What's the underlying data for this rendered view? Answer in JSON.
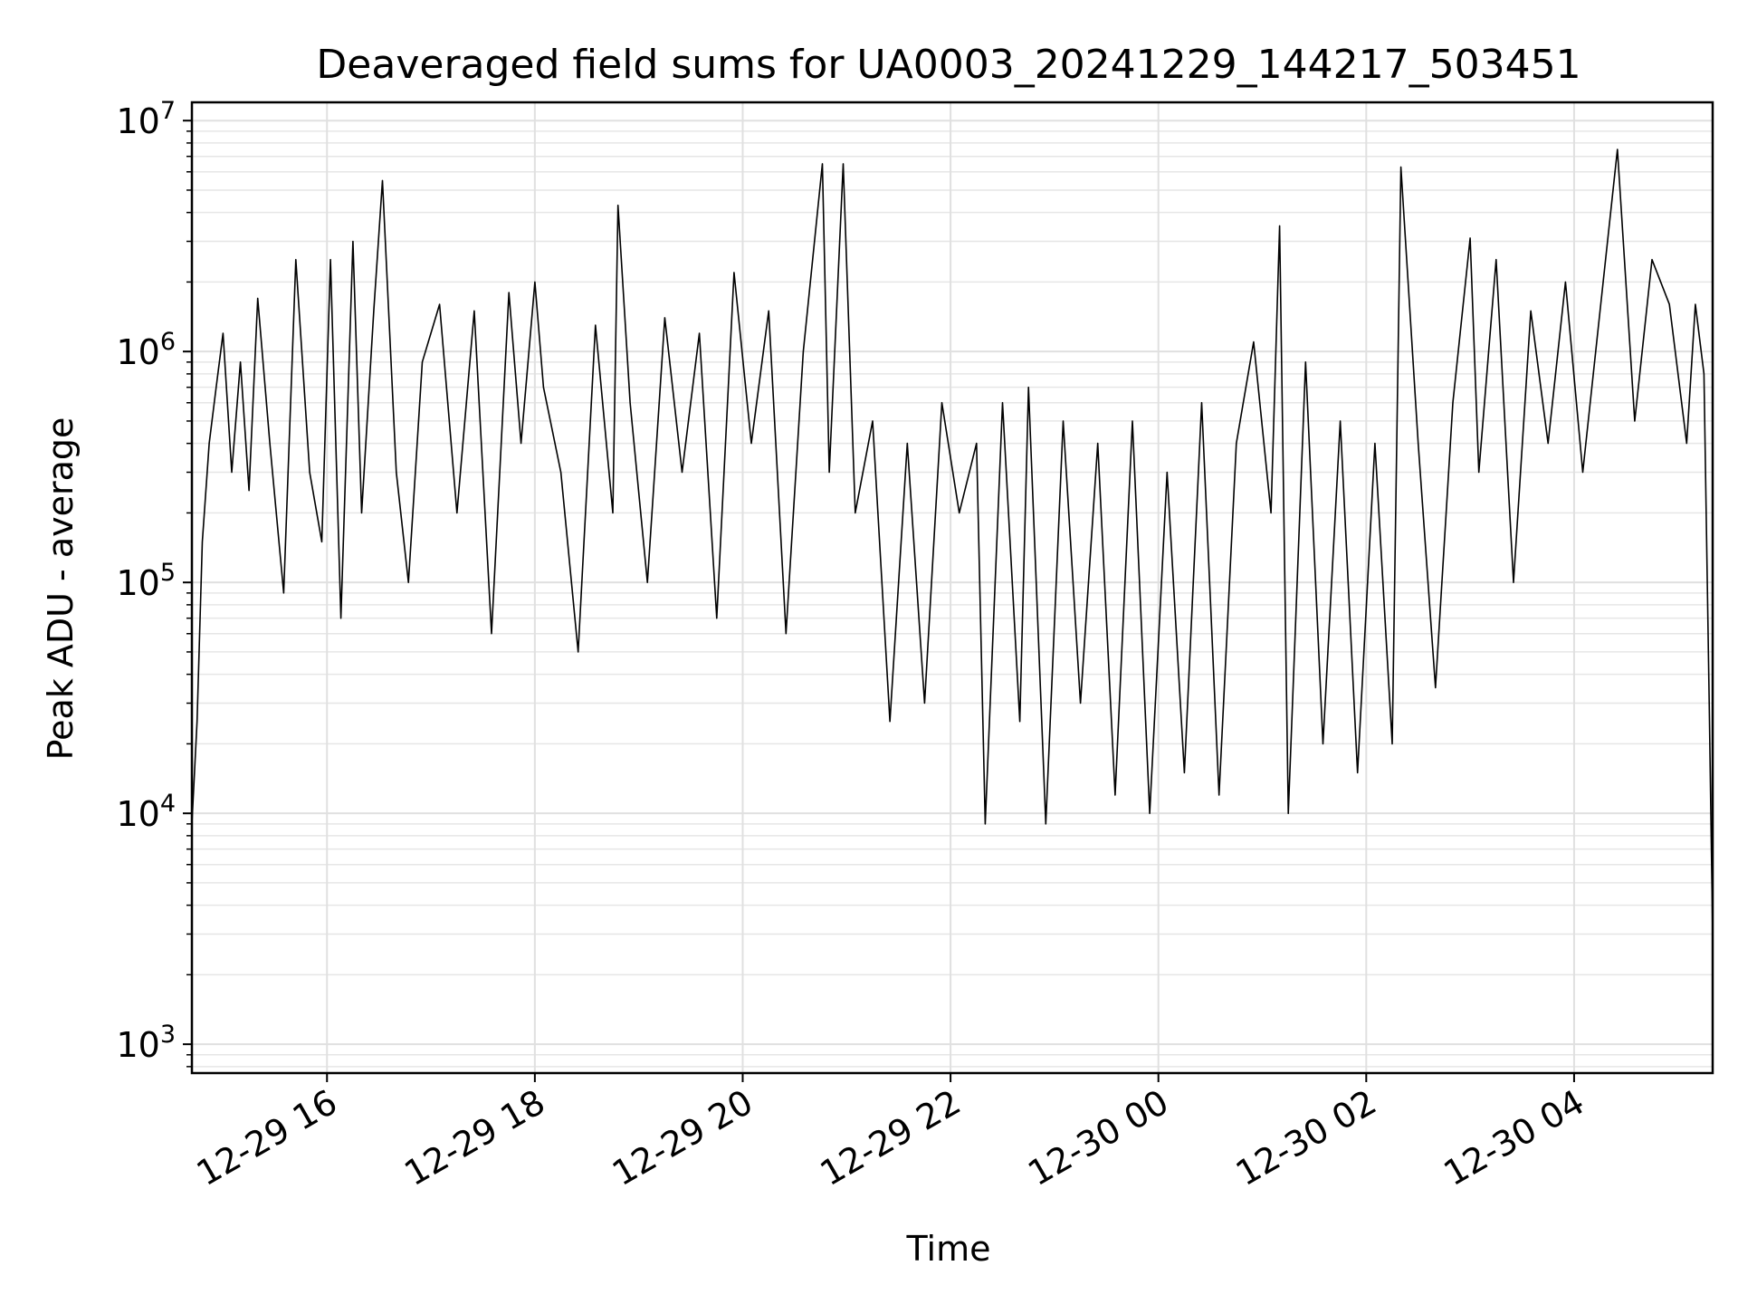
{
  "chart_data": {
    "type": "line",
    "title": "Deaveraged field sums for UA0003_20241229_144217_503451",
    "xlabel": "Time",
    "ylabel": "Peak ADU - average",
    "xscale": "time",
    "yscale": "log",
    "xlim": [
      "2024-12-29 14:42",
      "2024-12-30 05:20"
    ],
    "ylim": [
      750,
      12000000
    ],
    "grid": true,
    "legend": "none",
    "line_color": "#000000",
    "x_ticks": [
      {
        "value": "2024-12-29 16:00",
        "label": "12-29 16"
      },
      {
        "value": "2024-12-29 18:00",
        "label": "12-29 18"
      },
      {
        "value": "2024-12-29 20:00",
        "label": "12-29 20"
      },
      {
        "value": "2024-12-29 22:00",
        "label": "12-29 22"
      },
      {
        "value": "2024-12-30 00:00",
        "label": "12-30 00"
      },
      {
        "value": "2024-12-30 02:00",
        "label": "12-30 02"
      },
      {
        "value": "2024-12-30 04:00",
        "label": "12-30 04"
      }
    ],
    "y_ticks": [
      {
        "value": 1000,
        "base": "10",
        "exp": "3"
      },
      {
        "value": 10000,
        "base": "10",
        "exp": "4"
      },
      {
        "value": 100000,
        "base": "10",
        "exp": "5"
      },
      {
        "value": 1000000,
        "base": "10",
        "exp": "6"
      },
      {
        "value": 10000000,
        "base": "10",
        "exp": "7"
      }
    ],
    "series": [
      {
        "x": [
          "2024-12-29 14:42",
          "2024-12-29 14:45",
          "2024-12-29 14:48",
          "2024-12-29 14:52",
          "2024-12-29 14:56",
          "2024-12-29 15:00",
          "2024-12-29 15:05",
          "2024-12-29 15:10",
          "2024-12-29 15:15",
          "2024-12-29 15:20",
          "2024-12-29 15:27",
          "2024-12-29 15:35",
          "2024-12-29 15:42",
          "2024-12-29 15:50",
          "2024-12-29 15:57",
          "2024-12-29 16:02",
          "2024-12-29 16:08",
          "2024-12-29 16:15",
          "2024-12-29 16:20",
          "2024-12-29 16:27",
          "2024-12-29 16:32",
          "2024-12-29 16:40",
          "2024-12-29 16:47",
          "2024-12-29 16:55",
          "2024-12-29 17:05",
          "2024-12-29 17:15",
          "2024-12-29 17:25",
          "2024-12-29 17:35",
          "2024-12-29 17:45",
          "2024-12-29 17:52",
          "2024-12-29 18:00",
          "2024-12-29 18:05",
          "2024-12-29 18:15",
          "2024-12-29 18:25",
          "2024-12-29 18:35",
          "2024-12-29 18:45",
          "2024-12-29 18:48",
          "2024-12-29 18:55",
          "2024-12-29 19:05",
          "2024-12-29 19:15",
          "2024-12-29 19:25",
          "2024-12-29 19:35",
          "2024-12-29 19:45",
          "2024-12-29 19:55",
          "2024-12-29 20:05",
          "2024-12-29 20:15",
          "2024-12-29 20:25",
          "2024-12-29 20:35",
          "2024-12-29 20:46",
          "2024-12-29 20:50",
          "2024-12-29 20:58",
          "2024-12-29 21:05",
          "2024-12-29 21:15",
          "2024-12-29 21:25",
          "2024-12-29 21:35",
          "2024-12-29 21:45",
          "2024-12-29 21:55",
          "2024-12-29 22:05",
          "2024-12-29 22:15",
          "2024-12-29 22:20",
          "2024-12-29 22:30",
          "2024-12-29 22:40",
          "2024-12-29 22:45",
          "2024-12-29 22:55",
          "2024-12-29 23:05",
          "2024-12-29 23:15",
          "2024-12-29 23:25",
          "2024-12-29 23:35",
          "2024-12-29 23:45",
          "2024-12-29 23:55",
          "2024-12-30 00:05",
          "2024-12-30 00:15",
          "2024-12-30 00:25",
          "2024-12-30 00:35",
          "2024-12-30 00:45",
          "2024-12-30 00:55",
          "2024-12-30 01:05",
          "2024-12-30 01:10",
          "2024-12-30 01:15",
          "2024-12-30 01:25",
          "2024-12-30 01:35",
          "2024-12-30 01:45",
          "2024-12-30 01:55",
          "2024-12-30 02:05",
          "2024-12-30 02:15",
          "2024-12-30 02:20",
          "2024-12-30 02:30",
          "2024-12-30 02:40",
          "2024-12-30 02:50",
          "2024-12-30 03:00",
          "2024-12-30 03:05",
          "2024-12-30 03:15",
          "2024-12-30 03:25",
          "2024-12-30 03:35",
          "2024-12-30 03:45",
          "2024-12-30 03:55",
          "2024-12-30 04:05",
          "2024-12-30 04:15",
          "2024-12-30 04:25",
          "2024-12-30 04:35",
          "2024-12-30 04:45",
          "2024-12-30 04:55",
          "2024-12-30 05:05",
          "2024-12-30 05:10",
          "2024-12-30 05:15",
          "2024-12-30 05:18",
          "2024-12-30 05:20"
        ],
        "y": [
          9000,
          25000,
          150000,
          400000,
          700000,
          1200000,
          300000,
          900000,
          250000,
          1700000,
          400000,
          90000,
          2500000,
          300000,
          150000,
          2500000,
          70000,
          3000000,
          200000,
          1500000,
          5500000,
          300000,
          100000,
          900000,
          1600000,
          200000,
          1500000,
          60000,
          1800000,
          400000,
          2000000,
          700000,
          300000,
          50000,
          1300000,
          200000,
          4300000,
          600000,
          100000,
          1400000,
          300000,
          1200000,
          70000,
          2200000,
          400000,
          1500000,
          60000,
          1000000,
          6500000,
          300000,
          6500000,
          200000,
          500000,
          25000,
          400000,
          30000,
          600000,
          200000,
          400000,
          9000,
          600000,
          25000,
          700000,
          9000,
          500000,
          30000,
          400000,
          12000,
          500000,
          10000,
          300000,
          15000,
          600000,
          12000,
          400000,
          1100000,
          200000,
          3500000,
          10000,
          900000,
          20000,
          500000,
          15000,
          400000,
          20000,
          6300000,
          400000,
          35000,
          600000,
          3100000,
          300000,
          2500000,
          100000,
          1500000,
          400000,
          2000000,
          300000,
          1500000,
          7500000,
          500000,
          2500000,
          1600000,
          400000,
          1600000,
          800000,
          30000,
          3000
        ]
      }
    ]
  }
}
